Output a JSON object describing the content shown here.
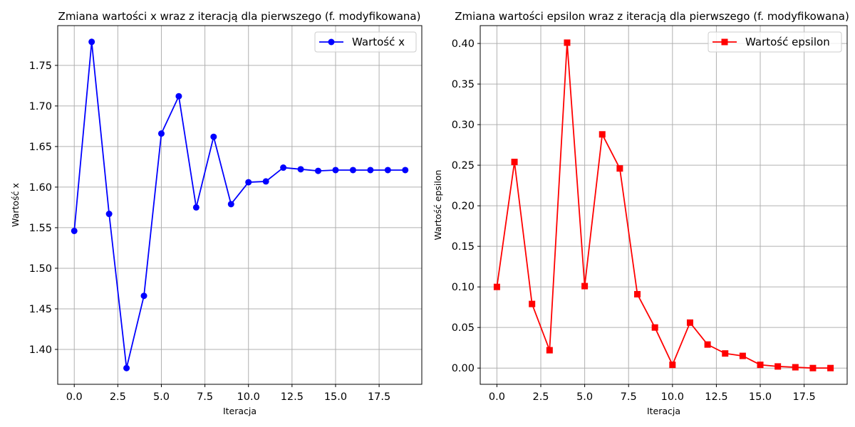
{
  "chart_data": [
    {
      "type": "line",
      "title": "Zmiana wartości x wraz z iteracją dla pierwszego (f. modyfikowana)",
      "xlabel": "Iteracja",
      "ylabel": "Wartość x",
      "xlim": [
        -0.95,
        19.95
      ],
      "ylim": [
        1.357,
        1.799
      ],
      "x_ticks": [
        0.0,
        2.5,
        5.0,
        7.5,
        10.0,
        12.5,
        15.0,
        17.5
      ],
      "x_tick_labels": [
        "0.0",
        "2.5",
        "5.0",
        "7.5",
        "10.0",
        "12.5",
        "15.0",
        "17.5"
      ],
      "y_ticks": [
        1.4,
        1.45,
        1.5,
        1.55,
        1.6,
        1.65,
        1.7,
        1.75
      ],
      "y_tick_labels": [
        "1.40",
        "1.45",
        "1.50",
        "1.55",
        "1.60",
        "1.65",
        "1.70",
        "1.75"
      ],
      "grid": true,
      "legend_position": "upper right",
      "series": [
        {
          "name": "Wartość x",
          "color": "#0000ff",
          "marker": "circle",
          "x": [
            0,
            1,
            2,
            3,
            4,
            5,
            6,
            7,
            8,
            9,
            10,
            11,
            12,
            13,
            14,
            15,
            16,
            17,
            18,
            19
          ],
          "y": [
            1.546,
            1.779,
            1.567,
            1.377,
            1.466,
            1.666,
            1.712,
            1.575,
            1.662,
            1.579,
            1.606,
            1.607,
            1.624,
            1.622,
            1.62,
            1.621,
            1.621,
            1.621,
            1.621,
            1.621
          ]
        }
      ]
    },
    {
      "type": "line",
      "title": "Zmiana wartości epsilon wraz z iteracją dla pierwszego (f. modyfikowana)",
      "xlabel": "Iteracja",
      "ylabel": "Wartość epsilon",
      "xlim": [
        -0.95,
        19.95
      ],
      "ylim": [
        -0.02,
        0.422
      ],
      "x_ticks": [
        0.0,
        2.5,
        5.0,
        7.5,
        10.0,
        12.5,
        15.0,
        17.5
      ],
      "x_tick_labels": [
        "0.0",
        "2.5",
        "5.0",
        "7.5",
        "10.0",
        "12.5",
        "15.0",
        "17.5"
      ],
      "y_ticks": [
        0.0,
        0.05,
        0.1,
        0.15,
        0.2,
        0.25,
        0.3,
        0.35,
        0.4
      ],
      "y_tick_labels": [
        "0.00",
        "0.05",
        "0.10",
        "0.15",
        "0.20",
        "0.25",
        "0.30",
        "0.35",
        "0.40"
      ],
      "grid": true,
      "legend_position": "upper right",
      "series": [
        {
          "name": "Wartość epsilon",
          "color": "#ff0000",
          "marker": "square",
          "x": [
            0,
            1,
            2,
            3,
            4,
            5,
            6,
            7,
            8,
            9,
            10,
            11,
            12,
            13,
            14,
            15,
            16,
            17,
            18,
            19
          ],
          "y": [
            0.1,
            0.254,
            0.079,
            0.022,
            0.401,
            0.101,
            0.288,
            0.246,
            0.091,
            0.05,
            0.004,
            0.056,
            0.029,
            0.018,
            0.015,
            0.004,
            0.002,
            0.001,
            0.0,
            0.0
          ]
        }
      ]
    }
  ]
}
